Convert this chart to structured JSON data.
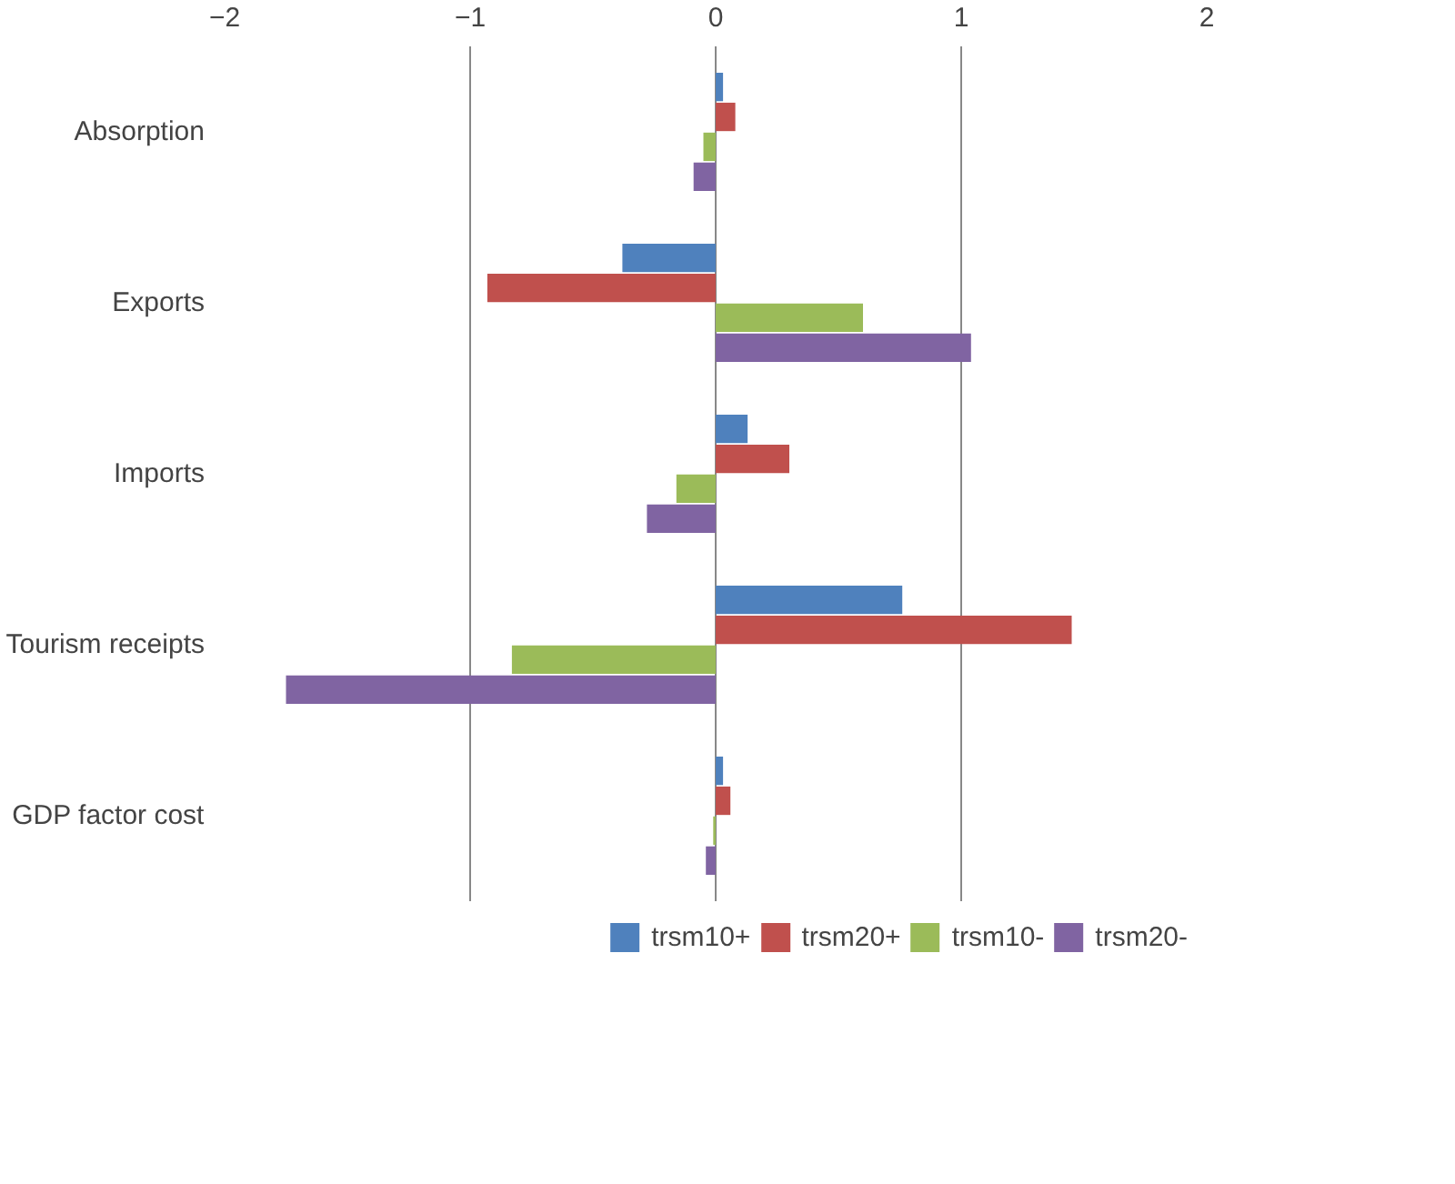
{
  "chart_data": {
    "type": "bar",
    "orientation": "horizontal",
    "categories": [
      "Absorption",
      "Exports",
      "Imports",
      "Tourism receipts",
      "GDP factor cost"
    ],
    "series": [
      {
        "name": "trsm10+",
        "color": "#4f81bd",
        "values": [
          0.03,
          -0.38,
          0.13,
          0.76,
          0.03
        ]
      },
      {
        "name": "trsm20+",
        "color": "#c0504d",
        "values": [
          0.08,
          -0.93,
          0.3,
          1.45,
          0.06
        ]
      },
      {
        "name": "trsm10-",
        "color": "#9bbb59",
        "values": [
          -0.05,
          0.6,
          -0.16,
          -0.83,
          -0.01
        ]
      },
      {
        "name": "trsm20-",
        "color": "#8064a2",
        "values": [
          -0.09,
          1.04,
          -0.28,
          -1.75,
          -0.04
        ]
      }
    ],
    "xlim": [
      -2,
      2
    ],
    "xticks": [
      -2,
      -1,
      0,
      1,
      2
    ],
    "grid": "x",
    "legend": "bottom"
  }
}
